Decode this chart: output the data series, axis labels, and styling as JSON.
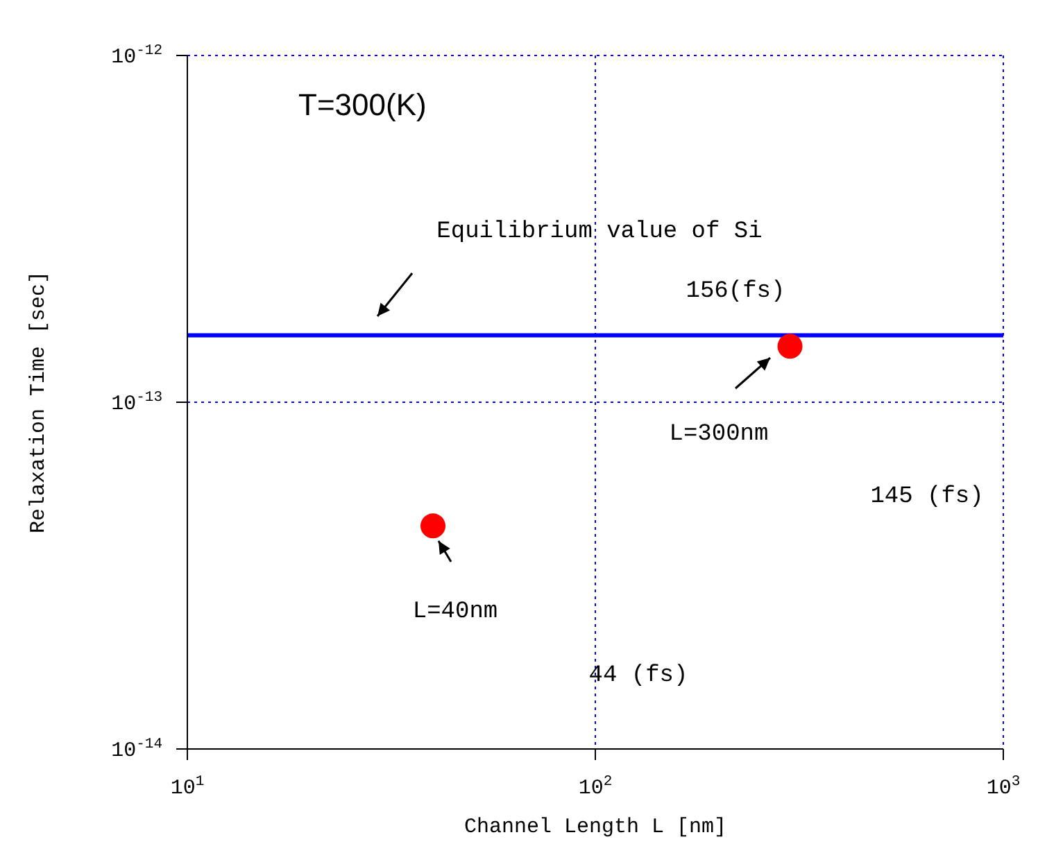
{
  "chart_data": {
    "type": "scatter",
    "xlabel": "Channel Length L [nm]",
    "ylabel": "Relaxation Time     [sec]",
    "log": "xy",
    "xlim": [
      10,
      1000
    ],
    "ylim": [
      1e-14,
      1e-12
    ],
    "xticks": [
      {
        "value": 10,
        "label": "10$^{1}$"
      },
      {
        "value": 100,
        "label": "10$^{2}$"
      },
      {
        "value": 1000,
        "label": "10$^{3}$"
      }
    ],
    "yticks": [
      {
        "value": 1e-14,
        "label": "10$^{-14}$"
      },
      {
        "value": 1e-13,
        "label": "10$^{-13}$"
      },
      {
        "value": 1e-12,
        "label": "10$^{-12}$"
      }
    ],
    "grid": true,
    "marker": "circle",
    "legend": false,
    "series": [
      {
        "x": [
          40,
          300
        ],
        "values": [
          4.4e-14,
          1.45e-13
        ],
        "color": "#ff0000"
      }
    ],
    "ref_lines": [
      {
        "axis": "y",
        "value": 1.56e-13,
        "color": "#0000ff",
        "line_style": "solid"
      }
    ],
    "annotations": [
      "T=300(K)",
      "Equilibrium value of Si",
      "156(fs)",
      "L=300nm",
      "145 (fs)",
      "L=40nm",
      "44 (fs)"
    ]
  }
}
